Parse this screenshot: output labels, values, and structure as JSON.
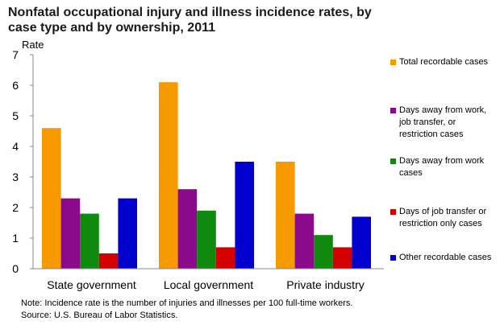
{
  "chart_data": {
    "type": "bar",
    "title": "Nonfatal occupational injury and illness incidence rates, by case type and by ownership, 2011",
    "ylabel": "Rate",
    "xlabel": "",
    "ylim": [
      0,
      7
    ],
    "yticks": [
      0,
      1,
      2,
      3,
      4,
      5,
      6,
      7
    ],
    "grid": false,
    "legend_position": "right",
    "categories": [
      "State government",
      "Local government",
      "Private industry"
    ],
    "series": [
      {
        "name": "Total recordable cases",
        "color": "#f79a00",
        "values": [
          4.6,
          6.1,
          3.5
        ]
      },
      {
        "name": "Days away from work, job transfer, or restriction cases",
        "color": "#8b0a8b",
        "values": [
          2.3,
          2.6,
          1.8
        ]
      },
      {
        "name": "Days away from work cases",
        "color": "#0f8a0f",
        "values": [
          1.8,
          1.9,
          1.1
        ]
      },
      {
        "name": "Days of job transfer or restriction only cases",
        "color": "#d40000",
        "values": [
          0.5,
          0.7,
          0.7
        ]
      },
      {
        "name": "Other recordable cases",
        "color": "#0000cc",
        "values": [
          2.3,
          3.5,
          1.7
        ]
      }
    ],
    "notes": [
      "Note: Incidence rate is the number of injuries and illnesses per 100 full-time workers.",
      "Source: U.S. Bureau of Labor Statistics."
    ]
  },
  "legend": {
    "items": [
      {
        "lines": [
          "Total recordable cases"
        ]
      },
      {
        "lines": [
          "Days away from work,",
          "job transfer, or",
          "restriction cases"
        ]
      },
      {
        "lines": [
          "Days away from work",
          "cases"
        ]
      },
      {
        "lines": [
          "Days of job transfer or",
          "restriction only cases"
        ]
      },
      {
        "lines": [
          "Other recordable cases"
        ]
      }
    ]
  }
}
